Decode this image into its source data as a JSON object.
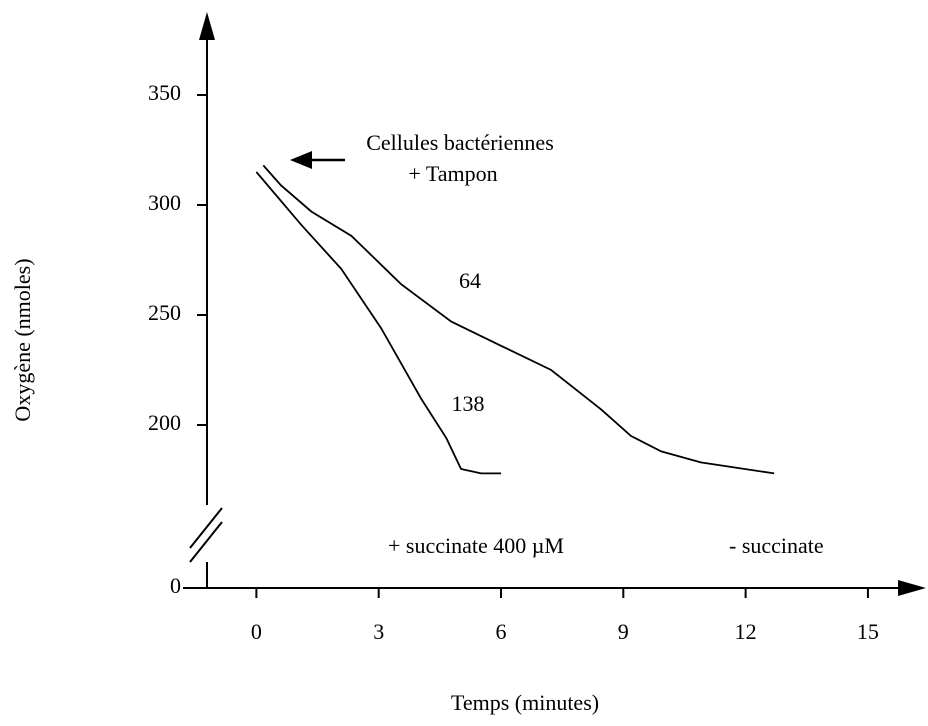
{
  "chart_data": {
    "type": "line",
    "x_label": "Temps (minutes)",
    "y_label": "Oxygène (nmoles)",
    "xlim": [
      -1.8,
      16.4
    ],
    "xticks": [
      0,
      3,
      6,
      9,
      12,
      15
    ],
    "ylim": [
      150,
      380
    ],
    "yticks": [
      0,
      200,
      250,
      300,
      350
    ],
    "y_break": true,
    "annotations": [
      "Cellules bactériennes",
      "+ Tampon",
      "64",
      "138"
    ],
    "series": [
      {
        "name": "+ succinate 400 µM",
        "color": "#000000",
        "x": [
          0,
          1.1,
          2.08,
          3.06,
          4.04,
          4.66,
          5.02,
          5.51,
          6.0
        ],
        "values": [
          315,
          291,
          271,
          244,
          212,
          194,
          180,
          178,
          178
        ]
      },
      {
        "name": "- succinate",
        "color": "#000000",
        "x": [
          0.17,
          0.6,
          1.35,
          2.33,
          3.55,
          4.78,
          6.0,
          7.23,
          8.46,
          9.19,
          9.93,
          10.9,
          12.7
        ],
        "values": [
          318,
          309,
          297,
          286,
          264,
          247,
          236,
          225,
          207,
          195,
          188,
          183,
          178
        ]
      }
    ]
  }
}
